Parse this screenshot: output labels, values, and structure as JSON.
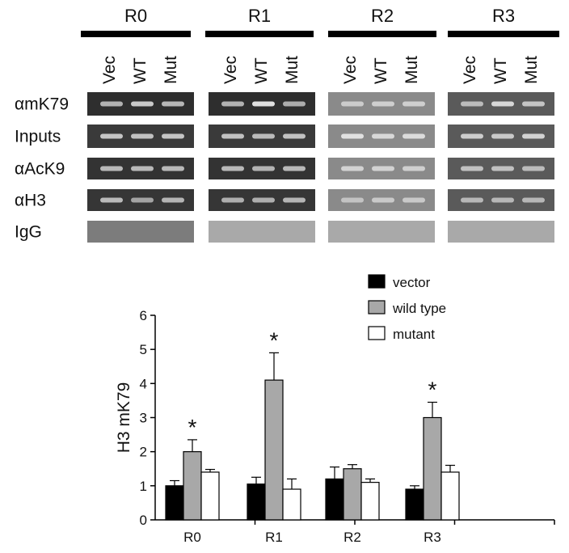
{
  "blot": {
    "regions": [
      "R0",
      "R1",
      "R2",
      "R3"
    ],
    "lanes": [
      "Vec",
      "WT",
      "Mut"
    ],
    "rows": [
      {
        "label": "αmK79",
        "bg": "#2e2e2e",
        "intensity": [
          [
            0.55,
            0.75,
            0.6
          ],
          [
            0.55,
            0.95,
            0.5
          ],
          [
            0.5,
            0.55,
            0.55
          ],
          [
            0.5,
            0.8,
            0.6
          ]
        ]
      },
      {
        "label": "Inputs",
        "bg": "#3a3a3a",
        "intensity": [
          [
            0.7,
            0.65,
            0.7
          ],
          [
            0.65,
            0.6,
            0.65
          ],
          [
            0.85,
            0.7,
            0.75
          ],
          [
            0.7,
            0.65,
            0.75
          ]
        ]
      },
      {
        "label": "αAcK9",
        "bg": "#333333",
        "intensity": [
          [
            0.6,
            0.6,
            0.6
          ],
          [
            0.6,
            0.55,
            0.6
          ],
          [
            0.6,
            0.6,
            0.55
          ],
          [
            0.55,
            0.55,
            0.5
          ]
        ]
      },
      {
        "label": "αH3",
        "bg": "#363636",
        "intensity": [
          [
            0.6,
            0.4,
            0.55
          ],
          [
            0.5,
            0.5,
            0.55
          ],
          [
            0.35,
            0.45,
            0.45
          ],
          [
            0.45,
            0.45,
            0.45
          ]
        ]
      },
      {
        "label": "IgG",
        "bg": "#9a9a9a",
        "intensity": [
          [
            0,
            0,
            0
          ],
          [
            0,
            0,
            0
          ],
          [
            0,
            0,
            0
          ],
          [
            0,
            0,
            0
          ]
        ]
      }
    ],
    "panel_tones": {
      "R2": "#8a8a8a",
      "R3": "#5a5a5a"
    }
  },
  "chart_data": {
    "type": "bar",
    "categories": [
      "R0",
      "R1",
      "R2",
      "R3"
    ],
    "ylabel": "H3 mK79",
    "xlabel": "",
    "title": "",
    "ylim": [
      0,
      6
    ],
    "yticks": [
      0,
      1,
      2,
      3,
      4,
      5,
      6
    ],
    "series": [
      {
        "name": "vector",
        "color": "#000000",
        "values": [
          1.0,
          1.05,
          1.2,
          0.9
        ],
        "errors": [
          0.15,
          0.2,
          0.35,
          0.1
        ]
      },
      {
        "name": "wild type",
        "color": "#a8a8a8",
        "values": [
          2.0,
          4.1,
          1.5,
          3.0
        ],
        "errors": [
          0.35,
          0.8,
          0.12,
          0.45
        ]
      },
      {
        "name": "mutant",
        "color": "#ffffff",
        "values": [
          1.4,
          0.9,
          1.1,
          1.4
        ],
        "errors": [
          0.08,
          0.3,
          0.1,
          0.2
        ]
      }
    ],
    "significance": [
      {
        "category": "R0",
        "series": "wild type",
        "mark": "*"
      },
      {
        "category": "R1",
        "series": "wild type",
        "mark": "*"
      },
      {
        "category": "R3",
        "series": "wild type",
        "mark": "*"
      }
    ],
    "legend": "top-right"
  }
}
